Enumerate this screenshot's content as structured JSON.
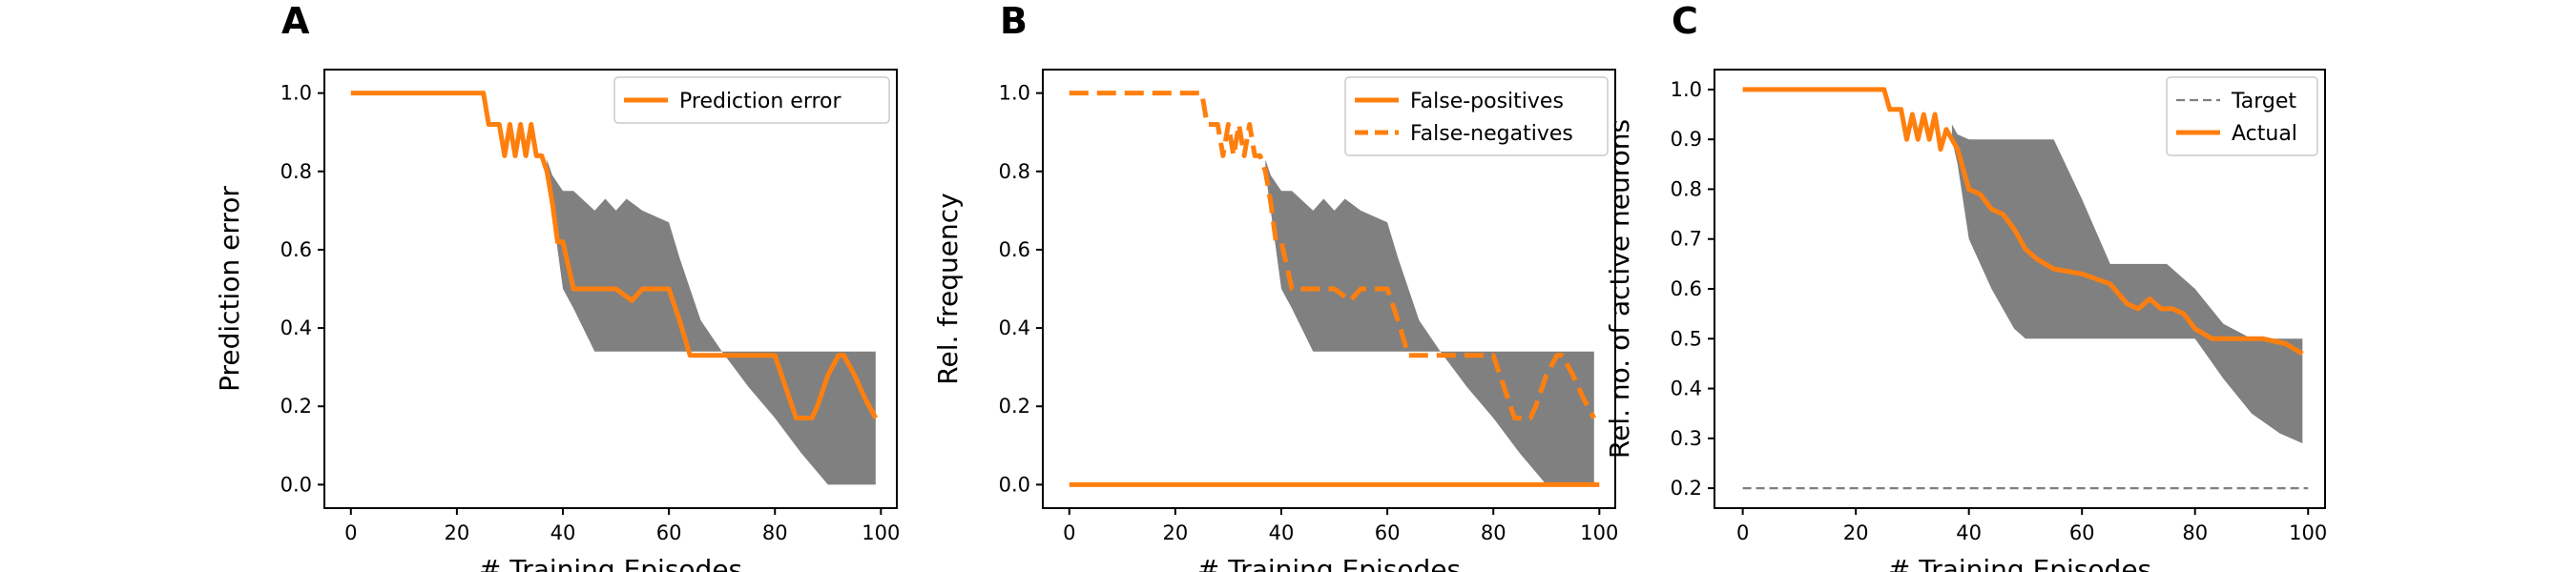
{
  "chart_data": [
    {
      "type": "line",
      "panel": "A",
      "xlabel": "# Training Episodes",
      "ylabel": "Prediction error",
      "xlim": [
        -5,
        103
      ],
      "ylim": [
        -0.06,
        1.06
      ],
      "xticks": [
        0,
        20,
        40,
        60,
        80,
        100
      ],
      "yticks": [
        0.0,
        0.2,
        0.4,
        0.6,
        0.8,
        1.0
      ],
      "ytick_labels": [
        "0.0",
        "0.2",
        "0.4",
        "0.6",
        "0.8",
        "1.0"
      ],
      "grid": false,
      "legend_position": "top-right",
      "series": [
        {
          "name": "Prediction error",
          "color": "#ff7f0e",
          "style": "solid",
          "x": [
            0,
            25,
            26,
            28,
            29,
            30,
            31,
            32,
            33,
            34,
            35,
            36,
            37,
            38,
            39,
            40,
            41,
            42,
            43,
            45,
            50,
            53,
            55,
            60,
            62,
            64,
            66,
            70,
            75,
            80,
            82,
            84,
            85,
            86,
            87,
            88,
            90,
            92,
            93,
            95,
            97,
            99
          ],
          "y": [
            1.0,
            1.0,
            0.92,
            0.92,
            0.84,
            0.92,
            0.84,
            0.92,
            0.84,
            0.92,
            0.84,
            0.84,
            0.8,
            0.72,
            0.62,
            0.62,
            0.56,
            0.5,
            0.5,
            0.5,
            0.5,
            0.47,
            0.5,
            0.5,
            0.42,
            0.33,
            0.33,
            0.33,
            0.33,
            0.33,
            0.25,
            0.17,
            0.17,
            0.17,
            0.17,
            0.2,
            0.28,
            0.33,
            0.33,
            0.28,
            0.22,
            0.17
          ]
        }
      ],
      "band": {
        "color": "#808080",
        "x": [
          37,
          38,
          40,
          42,
          46,
          48,
          50,
          52,
          55,
          60,
          62,
          64,
          66,
          70,
          75,
          80,
          85,
          90,
          95,
          99
        ],
        "upper": [
          0.83,
          0.79,
          0.75,
          0.75,
          0.7,
          0.73,
          0.7,
          0.73,
          0.7,
          0.67,
          0.58,
          0.5,
          0.42,
          0.34,
          0.34,
          0.34,
          0.34,
          0.34,
          0.34,
          0.34
        ],
        "lower": [
          0.8,
          0.7,
          0.5,
          0.45,
          0.34,
          0.34,
          0.34,
          0.34,
          0.34,
          0.34,
          0.34,
          0.34,
          0.34,
          0.34,
          0.25,
          0.17,
          0.08,
          0.0,
          0.0,
          0.0
        ]
      }
    },
    {
      "type": "line",
      "panel": "B",
      "xlabel": "# Training Episodes",
      "ylabel": "Rel. frequency",
      "xlim": [
        -5,
        103
      ],
      "ylim": [
        -0.06,
        1.06
      ],
      "xticks": [
        0,
        20,
        40,
        60,
        80,
        100
      ],
      "yticks": [
        0.0,
        0.2,
        0.4,
        0.6,
        0.8,
        1.0
      ],
      "ytick_labels": [
        "0.0",
        "0.2",
        "0.4",
        "0.6",
        "0.8",
        "1.0"
      ],
      "grid": false,
      "legend_position": "top-right",
      "series": [
        {
          "name": "False-positives",
          "color": "#ff7f0e",
          "style": "solid",
          "x": [
            0,
            100
          ],
          "y": [
            0.0,
            0.0
          ]
        },
        {
          "name": "False-negatives",
          "color": "#ff7f0e",
          "style": "dashed",
          "x": [
            0,
            25,
            26,
            28,
            29,
            30,
            31,
            32,
            33,
            34,
            35,
            36,
            37,
            38,
            39,
            40,
            41,
            42,
            43,
            45,
            50,
            53,
            55,
            60,
            62,
            64,
            66,
            70,
            75,
            80,
            82,
            84,
            85,
            86,
            87,
            88,
            90,
            92,
            93,
            95,
            97,
            99
          ],
          "y": [
            1.0,
            1.0,
            0.92,
            0.92,
            0.84,
            0.92,
            0.84,
            0.92,
            0.84,
            0.92,
            0.84,
            0.84,
            0.8,
            0.72,
            0.62,
            0.62,
            0.56,
            0.5,
            0.5,
            0.5,
            0.5,
            0.47,
            0.5,
            0.5,
            0.42,
            0.33,
            0.33,
            0.33,
            0.33,
            0.33,
            0.25,
            0.17,
            0.17,
            0.17,
            0.17,
            0.2,
            0.28,
            0.33,
            0.33,
            0.28,
            0.22,
            0.17
          ]
        }
      ],
      "band": {
        "color": "#808080",
        "x": [
          37,
          38,
          40,
          42,
          46,
          48,
          50,
          52,
          55,
          60,
          62,
          64,
          66,
          70,
          75,
          80,
          85,
          90,
          95,
          99
        ],
        "upper": [
          0.83,
          0.79,
          0.75,
          0.75,
          0.7,
          0.73,
          0.7,
          0.73,
          0.7,
          0.67,
          0.58,
          0.5,
          0.42,
          0.34,
          0.34,
          0.34,
          0.34,
          0.34,
          0.34,
          0.34
        ],
        "lower": [
          0.8,
          0.7,
          0.5,
          0.45,
          0.34,
          0.34,
          0.34,
          0.34,
          0.34,
          0.34,
          0.34,
          0.34,
          0.34,
          0.34,
          0.25,
          0.17,
          0.08,
          0.0,
          0.0,
          0.0
        ]
      }
    },
    {
      "type": "line",
      "panel": "C",
      "xlabel": "# Training Episodes",
      "ylabel": "Rel. no. of active neurons",
      "xlim": [
        -5,
        103
      ],
      "ylim": [
        0.16,
        1.04
      ],
      "xticks": [
        0,
        20,
        40,
        60,
        80,
        100
      ],
      "yticks": [
        0.2,
        0.3,
        0.4,
        0.5,
        0.6,
        0.7,
        0.8,
        0.9,
        1.0
      ],
      "ytick_labels": [
        "0.2",
        "0.3",
        "0.4",
        "0.5",
        "0.6",
        "0.7",
        "0.8",
        "0.9",
        "1.0"
      ],
      "grid": false,
      "legend_position": "top-right",
      "series": [
        {
          "name": "Target",
          "color": "#7f7f7f",
          "style": "dashed",
          "x": [
            0,
            100
          ],
          "y": [
            0.2,
            0.2
          ]
        },
        {
          "name": "Actual",
          "color": "#ff7f0e",
          "style": "solid",
          "x": [
            0,
            25,
            26,
            28,
            29,
            30,
            31,
            32,
            33,
            34,
            35,
            36,
            38,
            40,
            42,
            44,
            46,
            48,
            50,
            52,
            55,
            60,
            65,
            68,
            70,
            72,
            74,
            76,
            78,
            80,
            83,
            88,
            92,
            96,
            99
          ],
          "y": [
            1.0,
            1.0,
            0.96,
            0.96,
            0.9,
            0.95,
            0.9,
            0.95,
            0.9,
            0.95,
            0.88,
            0.92,
            0.88,
            0.8,
            0.79,
            0.76,
            0.75,
            0.72,
            0.68,
            0.66,
            0.64,
            0.63,
            0.61,
            0.57,
            0.56,
            0.58,
            0.56,
            0.56,
            0.55,
            0.52,
            0.5,
            0.5,
            0.5,
            0.49,
            0.47
          ]
        }
      ],
      "band": {
        "color": "#808080",
        "x": [
          37,
          38,
          40,
          44,
          48,
          50,
          55,
          60,
          65,
          70,
          75,
          80,
          85,
          90,
          95,
          99
        ],
        "upper": [
          0.93,
          0.91,
          0.9,
          0.9,
          0.9,
          0.9,
          0.9,
          0.78,
          0.65,
          0.65,
          0.65,
          0.6,
          0.53,
          0.5,
          0.5,
          0.5
        ],
        "lower": [
          0.9,
          0.85,
          0.7,
          0.6,
          0.52,
          0.5,
          0.5,
          0.5,
          0.5,
          0.5,
          0.5,
          0.5,
          0.42,
          0.35,
          0.31,
          0.29
        ]
      }
    }
  ]
}
